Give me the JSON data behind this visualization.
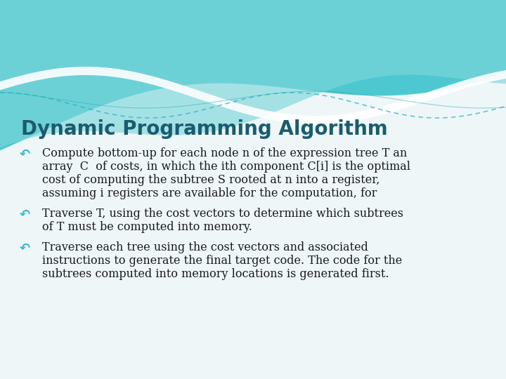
{
  "title": "Dynamic Programming Algorithm",
  "title_color": "#1a5c6e",
  "title_fontsize": 20,
  "background_color": "#eef6f8",
  "text_color": "#1a1a1a",
  "bullet_color": "#3ab8c5",
  "bullets": [
    {
      "lines": [
        "Compute bottom-up for each node n of the expression tree T an",
        "array  C  of costs, in which the ith component C[i] is the optimal",
        "cost of computing the subtree S rooted at n into a register,",
        "assuming i registers are available for the computation, for"
      ]
    },
    {
      "lines": [
        "Traverse T, using the cost vectors to determine which subtrees",
        "of T must be computed into memory."
      ]
    },
    {
      "lines": [
        "Traverse each tree using the cost vectors and associated",
        "instructions to generate the final target code. The code for the",
        "subtrees computed into memory locations is generated first."
      ]
    }
  ],
  "wave_teal_main": "#4ec8d0",
  "wave_teal_light": "#7dd6dc",
  "wave_white": "#ffffff",
  "wave_teal_dark": "#2ab0bc"
}
